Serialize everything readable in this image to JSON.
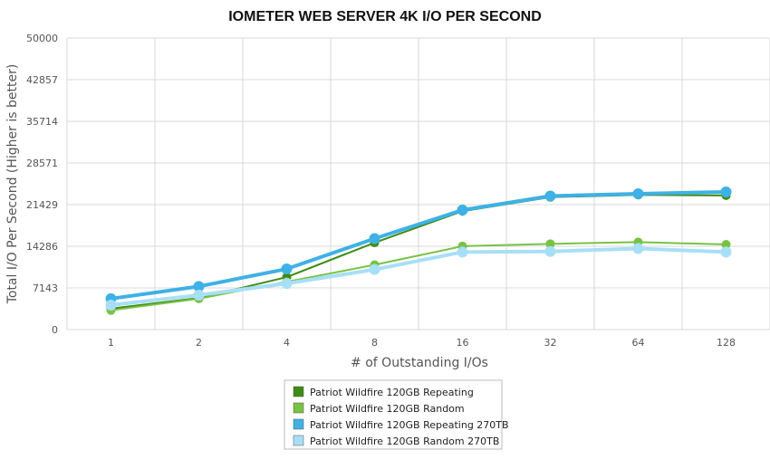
{
  "chart_data": {
    "type": "line",
    "title": "IOMETER WEB SERVER 4K I/O PER SECOND",
    "xlabel": "# of Outstanding I/Os",
    "ylabel": "Total I/O Per Second (Higher is better)",
    "categories": [
      "1",
      "2",
      "4",
      "8",
      "16",
      "32",
      "64",
      "128"
    ],
    "yticks": [
      "0",
      "7143",
      "14286",
      "21429",
      "28571",
      "35714",
      "42857",
      "50000"
    ],
    "ylim": [
      0,
      50000
    ],
    "grid": true,
    "legend_position": "bottom-center",
    "series": [
      {
        "name": "Patriot Wildfire 120GB Repeating",
        "color": "#3d8c14",
        "width": 2,
        "values": [
          3600,
          5400,
          9000,
          14900,
          20300,
          22700,
          23100,
          23000
        ]
      },
      {
        "name": "Patriot Wildfire 120GB Random",
        "color": "#78c244",
        "width": 2,
        "values": [
          3300,
          5300,
          8200,
          11100,
          14300,
          14700,
          15000,
          14600
        ]
      },
      {
        "name": "Patriot Wildfire 120GB Repeating 270TB",
        "color": "#3fb1e6",
        "width": 4,
        "values": [
          5300,
          7400,
          10400,
          15600,
          20500,
          22900,
          23300,
          23600
        ]
      },
      {
        "name": "Patriot Wildfire 120GB Random 270TB",
        "color": "#a8dff7",
        "width": 4,
        "values": [
          4200,
          5900,
          7900,
          10300,
          13300,
          13400,
          13900,
          13300
        ]
      }
    ]
  }
}
